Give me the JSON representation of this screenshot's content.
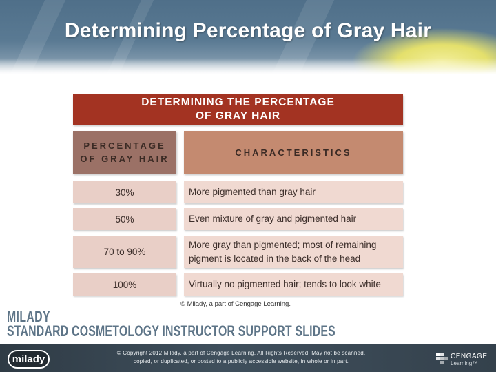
{
  "slide": {
    "title": "Determining Percentage of Gray Hair"
  },
  "table": {
    "header_line1": "DETERMINING THE PERCENTAGE",
    "header_line2": "OF GRAY HAIR",
    "col_percentage_line1": "PERCENTAGE",
    "col_percentage_line2": "OF GRAY HAIR",
    "col_characteristics": "CHARACTERISTICS",
    "rows": [
      {
        "percentage": "30%",
        "characteristics": "More pigmented than gray hair"
      },
      {
        "percentage": "50%",
        "characteristics": "Even mixture of gray and pigmented hair"
      },
      {
        "percentage": "70 to 90%",
        "characteristics_line1": "More gray than pigmented; most of remaining",
        "characteristics_line2": "pigment is located in the back of the head"
      },
      {
        "percentage": "100%",
        "characteristics": "Virtually no pigmented hair; tends to look white"
      }
    ],
    "credit": "© Milady, a part of Cengage Learning."
  },
  "branding": {
    "line1": "MILADY",
    "line2": "STANDARD COSMETOLOGY INSTRUCTOR SUPPORT SLIDES",
    "logo_text": "milady",
    "publisher_name": "CENGAGE",
    "publisher_sub": "Learning™"
  },
  "footer": {
    "copyright_line1": "© Copyright 2012 Milady, a part of Cengage Learning. All Rights Reserved. May not be scanned,",
    "copyright_line2": "copied, or duplicated, or posted to a publicly accessible website, in whole or in part."
  },
  "colors": {
    "banner": "#5a7a93",
    "table_header": "#a33322",
    "col_head_left": "#9b7166",
    "col_head_right": "#c48a70",
    "cell_bg": "#f0d9d1",
    "brand_text": "#5d7487",
    "footer_bg": "#34414c"
  }
}
